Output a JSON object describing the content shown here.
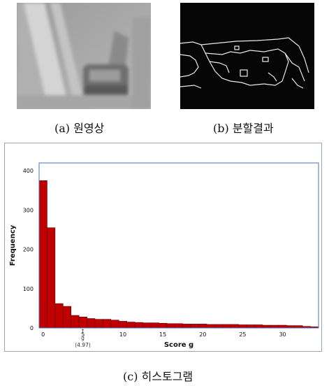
{
  "captions": {
    "a": "(a) 원영상",
    "b": "(b) 분할결과",
    "c": "(c) 히스토그램"
  },
  "images": {
    "a": "grayscale-photo-original-image",
    "b": "black-edge-segmentation-result"
  },
  "chart_data": {
    "type": "bar",
    "x": [
      0,
      1,
      2,
      3,
      4,
      5,
      6,
      7,
      8,
      9,
      10,
      11,
      12,
      13,
      14,
      15,
      16,
      17,
      18,
      19,
      20,
      21,
      22,
      23,
      24,
      25,
      26,
      27,
      28,
      29,
      30,
      31,
      32,
      33,
      34
    ],
    "values": [
      375,
      255,
      62,
      55,
      32,
      28,
      24,
      22,
      22,
      20,
      17,
      15,
      14,
      13,
      13,
      12,
      11,
      11,
      10,
      10,
      10,
      9,
      9,
      9,
      9,
      8,
      8,
      8,
      7,
      7,
      7,
      6,
      6,
      4,
      3
    ],
    "xlabel": "Score g",
    "ylabel": "Frequency",
    "xlim": [
      -0.5,
      34.5
    ],
    "ylim": [
      0,
      420
    ],
    "xticks": [
      0,
      5,
      10,
      15,
      20,
      25,
      30
    ],
    "yticks": [
      0,
      100,
      200,
      300,
      400
    ],
    "bar_color": "#c00000",
    "annotation": {
      "arrow": "↑",
      "label": "g",
      "value": "(4.97)",
      "x": 4.97
    }
  }
}
